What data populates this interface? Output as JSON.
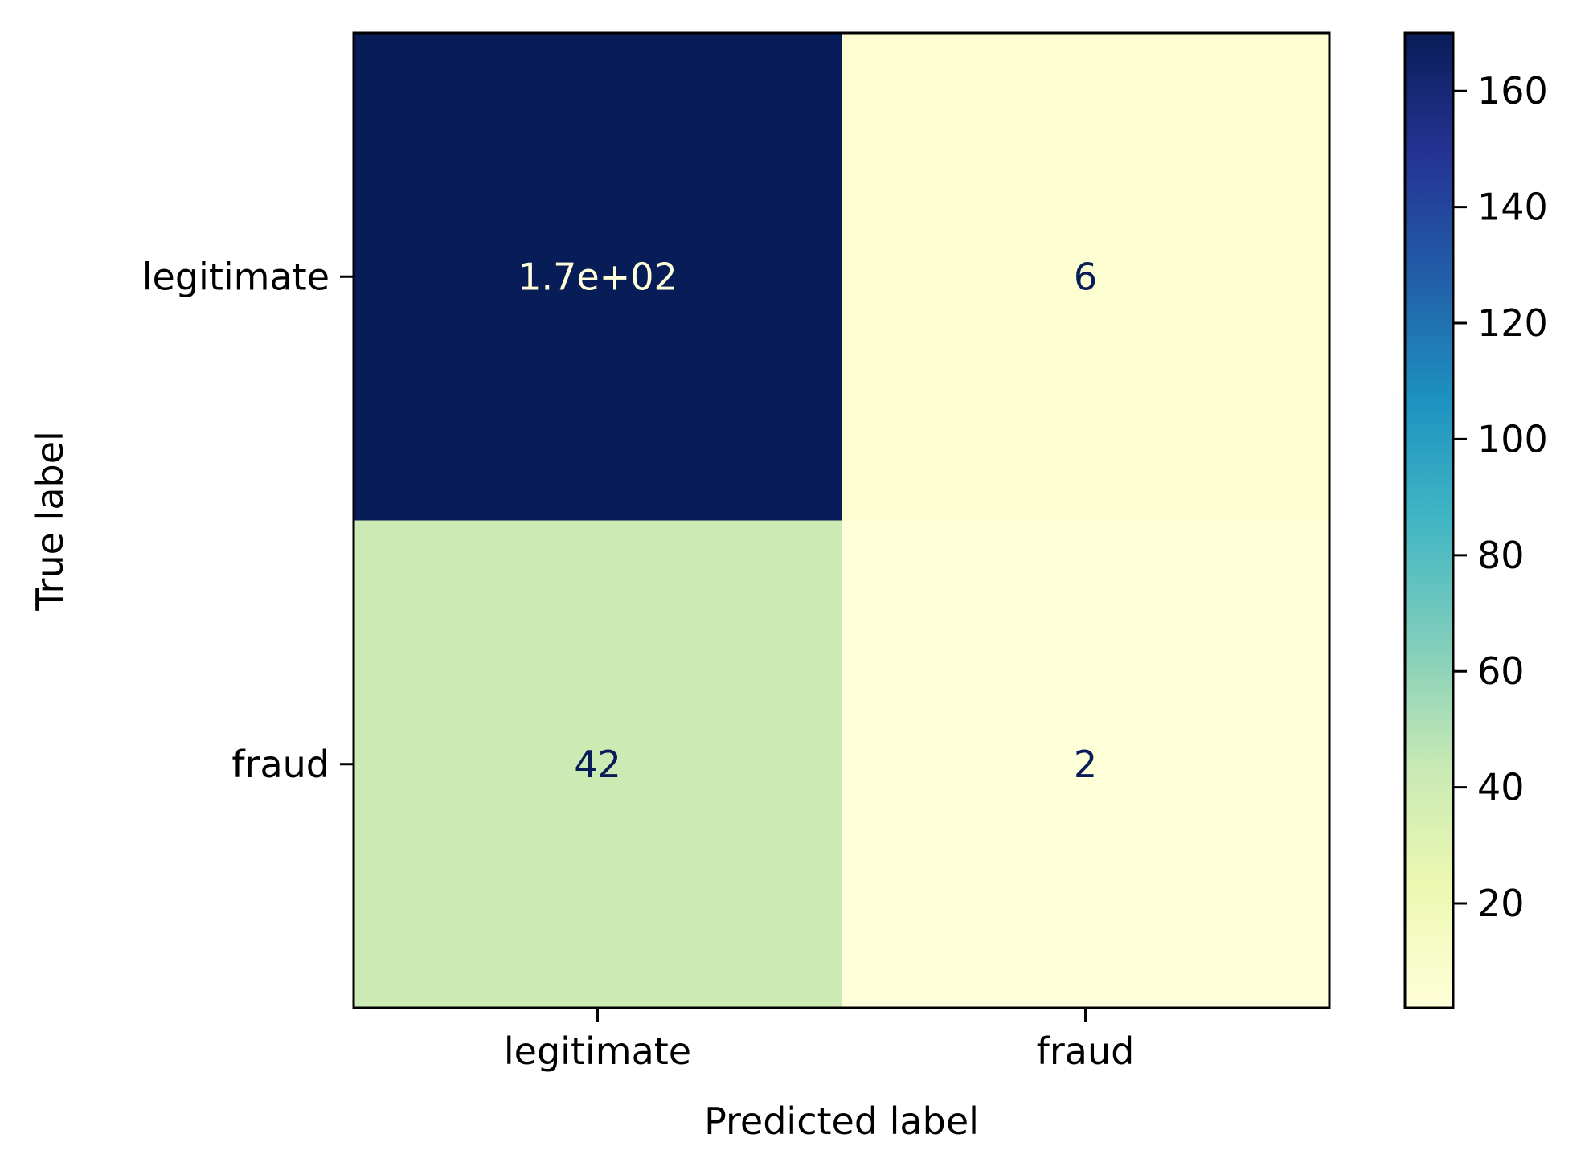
{
  "chart_data": {
    "type": "heatmap",
    "title": "",
    "xlabel": "Predicted label",
    "ylabel": "True label",
    "x_categories": [
      "legitimate",
      "fraud"
    ],
    "y_categories": [
      "legitimate",
      "fraud"
    ],
    "values": [
      [
        170,
        6
      ],
      [
        42,
        2
      ]
    ],
    "cell_labels": [
      [
        "1.7e+02",
        "6"
      ],
      [
        "42",
        "2"
      ]
    ],
    "colormap": "YlGnBu",
    "colorbar": {
      "vmin": 2,
      "vmax": 170,
      "ticks": [
        20,
        40,
        60,
        80,
        100,
        120,
        140,
        160
      ],
      "tick_labels": [
        "20",
        "40",
        "60",
        "80",
        "100",
        "120",
        "140",
        "160"
      ]
    },
    "colors": {
      "text_on_dark": "#fffed9",
      "text_on_light": "#081d58"
    }
  }
}
